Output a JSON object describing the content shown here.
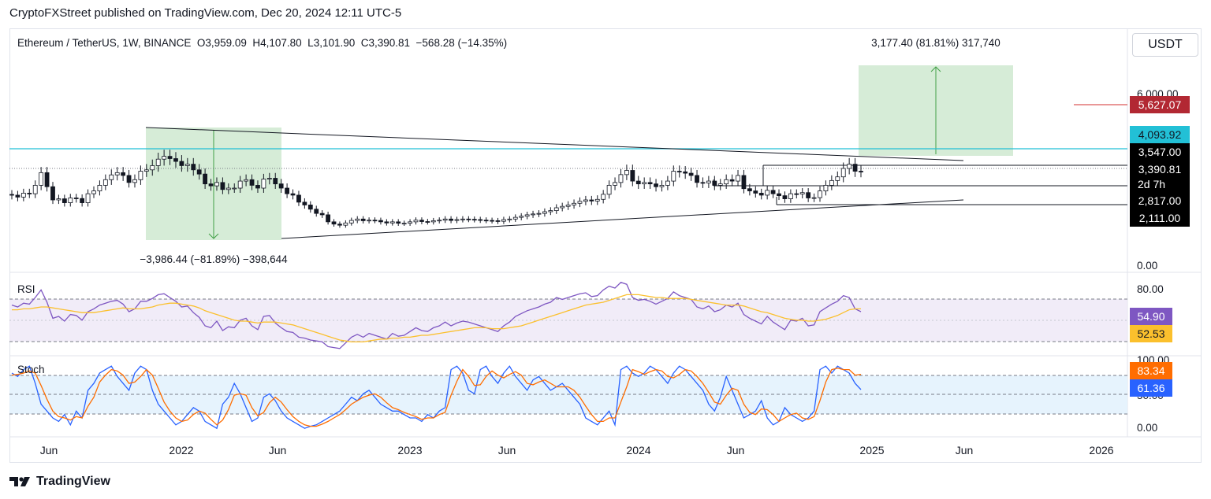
{
  "header": {
    "publisher": "CryptoFXStreet published on TradingView.com, Dec 20, 2024 12:11 UTC-5"
  },
  "footer": {
    "brand": "TradingView"
  },
  "symbol_line": "Ethereum / TetherUS, 1W, BINANCE  O3,959.09  H4,107.80  L3,101.90  C3,390.81  −568.28 (−14.35%)",
  "currency_button": "USDT",
  "chart_data": [
    {
      "type": "candlestick",
      "title": "Ethereum / TetherUS, 1W, BINANCE",
      "ohlc": {
        "open": 3959.09,
        "high": 4107.8,
        "low": 3101.9,
        "close": 3390.81,
        "change": -568.28,
        "change_pct": -14.35
      },
      "x_tick_labels": [
        "Jun",
        "2022",
        "Jun",
        "2023",
        "Jun",
        "2024",
        "Jun",
        "2025",
        "Jun",
        "2026"
      ],
      "y_tick_labels": [
        "6,000.00",
        "0.00"
      ],
      "price_labels": [
        {
          "text": "5,627.07",
          "color": "#b22833"
        },
        {
          "text": "4,093.92",
          "color": "#22c0d6"
        },
        {
          "text": "3,547.00",
          "color": "#000000"
        },
        {
          "text": "3,390.81",
          "color": "#000000"
        },
        {
          "text": "2d 7h",
          "color": "#000000"
        },
        {
          "text": "2,817.00",
          "color": "#000000"
        },
        {
          "text": "2,111.00",
          "color": "#000000"
        }
      ],
      "annotations": [
        "3,177.40 (81.81%) 317,740",
        "−3,986.44 (−81.89%) −398,644"
      ],
      "closes": [
        2550,
        2480,
        2620,
        2600,
        2900,
        3350,
        2850,
        2380,
        2420,
        2280,
        2450,
        2430,
        2280,
        2600,
        2700,
        2900,
        3100,
        3270,
        3350,
        3250,
        3000,
        3100,
        3400,
        3450,
        3600,
        3830,
        3930,
        3850,
        3750,
        3600,
        3650,
        3450,
        3300,
        2950,
        2880,
        3000,
        2750,
        2800,
        2800,
        3050,
        3100,
        2900,
        2800,
        3120,
        3150,
        2950,
        2800,
        2600,
        2550,
        2300,
        2200,
        2050,
        1900,
        1850,
        1600,
        1520,
        1480,
        1560,
        1650,
        1700,
        1640,
        1660,
        1650,
        1600,
        1560,
        1600,
        1550,
        1550,
        1600,
        1660,
        1610,
        1600,
        1640,
        1660,
        1700,
        1650,
        1680,
        1700,
        1690,
        1680,
        1660,
        1650,
        1640,
        1620,
        1680,
        1700,
        1760,
        1800,
        1850,
        1880,
        1900,
        1960,
        2000,
        2100,
        2150,
        2200,
        2260,
        2330,
        2380,
        2340,
        2400,
        2580,
        2900,
        3000,
        3280,
        3430,
        3050,
        2950,
        3000,
        2950,
        2850,
        2900,
        3050,
        3400,
        3380,
        3330,
        3250,
        3000,
        2980,
        3050,
        2900,
        2950,
        3100,
        3050,
        3250,
        2780,
        2700,
        2620,
        2550,
        2720,
        2600,
        2530,
        2420,
        2600,
        2590,
        2640,
        2450,
        2460,
        2700,
        2900,
        3070,
        3200,
        3500,
        3650,
        3400,
        3390
      ],
      "ylim": [
        0,
        7000
      ]
    },
    {
      "type": "line",
      "title": "RSI",
      "y_tick_labels": [
        "80.00"
      ],
      "series": [
        {
          "label": "54.90",
          "color": "#7e57c2",
          "values": [
            62,
            60,
            64,
            63,
            70,
            78,
            65,
            48,
            50,
            45,
            52,
            51,
            46,
            55,
            58,
            62,
            64,
            66,
            67,
            63,
            55,
            58,
            66,
            66,
            69,
            73,
            74,
            70,
            66,
            60,
            61,
            54,
            49,
            40,
            38,
            45,
            35,
            39,
            38,
            46,
            48,
            40,
            36,
            50,
            51,
            43,
            38,
            34,
            33,
            28,
            27,
            25,
            24,
            23,
            18,
            17,
            16,
            22,
            28,
            31,
            28,
            32,
            30,
            28,
            26,
            32,
            29,
            30,
            34,
            38,
            35,
            34,
            38,
            40,
            44,
            40,
            43,
            45,
            44,
            42,
            40,
            38,
            36,
            34,
            40,
            44,
            50,
            53,
            56,
            58,
            60,
            63,
            65,
            70,
            68,
            70,
            72,
            74,
            75,
            71,
            72,
            78,
            82,
            80,
            86,
            84,
            70,
            67,
            68,
            66,
            63,
            66,
            69,
            76,
            72,
            70,
            68,
            60,
            58,
            61,
            55,
            57,
            62,
            60,
            64,
            52,
            48,
            45,
            42,
            50,
            44,
            40,
            36,
            46,
            45,
            48,
            40,
            41,
            55,
            59,
            63,
            66,
            72,
            70,
            58,
            55
          ]
        },
        {
          "label": "52.53",
          "color": "#fbc02d",
          "values": [
            57,
            57,
            58,
            58,
            59,
            60,
            60,
            59,
            58,
            57,
            56,
            55,
            54,
            54,
            54,
            55,
            56,
            57,
            58,
            59,
            58,
            58,
            58,
            59,
            60,
            62,
            63,
            64,
            64,
            63,
            62,
            61,
            59,
            56,
            54,
            52,
            50,
            48,
            46,
            45,
            45,
            44,
            43,
            44,
            44,
            44,
            43,
            42,
            41,
            39,
            37,
            35,
            33,
            31,
            29,
            27,
            25,
            24,
            23,
            23,
            23,
            24,
            25,
            26,
            26,
            27,
            27,
            28,
            28,
            29,
            30,
            30,
            31,
            32,
            33,
            34,
            35,
            36,
            37,
            38,
            38,
            38,
            37,
            37,
            37,
            38,
            39,
            40,
            42,
            44,
            46,
            48,
            50,
            52,
            54,
            56,
            58,
            60,
            62,
            63,
            64,
            65,
            67,
            69,
            71,
            73,
            73,
            73,
            72,
            71,
            70,
            70,
            69,
            69,
            69,
            69,
            68,
            67,
            66,
            65,
            64,
            63,
            62,
            62,
            62,
            61,
            59,
            57,
            55,
            54,
            52,
            50,
            48,
            47,
            46,
            46,
            45,
            45,
            46,
            47,
            49,
            51,
            54,
            57,
            58,
            58
          ]
        }
      ],
      "ylim": [
        10,
        95
      ]
    },
    {
      "type": "line",
      "title": "Stoch",
      "y_tick_labels": [
        "100.00",
        "50.00",
        "0.00"
      ],
      "series": [
        {
          "label": "61.36",
          "color": "#2962ff",
          "values": [
            85,
            80,
            90,
            95,
            70,
            40,
            30,
            20,
            15,
            25,
            10,
            30,
            20,
            60,
            70,
            85,
            90,
            95,
            80,
            70,
            60,
            85,
            95,
            90,
            60,
            40,
            30,
            20,
            10,
            15,
            25,
            35,
            30,
            15,
            10,
            5,
            40,
            50,
            70,
            55,
            35,
            15,
            20,
            50,
            55,
            45,
            30,
            20,
            15,
            10,
            5,
            8,
            10,
            15,
            20,
            25,
            30,
            40,
            50,
            45,
            55,
            60,
            50,
            40,
            35,
            30,
            30,
            25,
            20,
            20,
            15,
            25,
            20,
            30,
            35,
            90,
            95,
            85,
            60,
            55,
            90,
            95,
            80,
            70,
            85,
            95,
            80,
            70,
            60,
            75,
            80,
            70,
            60,
            65,
            70,
            60,
            50,
            40,
            20,
            15,
            10,
            20,
            30,
            10,
            90,
            95,
            85,
            80,
            85,
            95,
            90,
            80,
            70,
            85,
            95,
            90,
            80,
            70,
            60,
            40,
            30,
            50,
            80,
            60,
            40,
            20,
            25,
            30,
            45,
            20,
            10,
            15,
            35,
            25,
            20,
            15,
            20,
            30,
            90,
            95,
            85,
            95,
            90,
            85,
            70,
            61
          ]
        },
        {
          "label": "83.34",
          "color": "#ff6d00",
          "values": [
            82,
            83,
            85,
            88,
            85,
            67,
            47,
            30,
            22,
            20,
            17,
            22,
            20,
            37,
            50,
            72,
            82,
            90,
            88,
            82,
            70,
            72,
            80,
            90,
            82,
            63,
            43,
            30,
            20,
            15,
            17,
            25,
            30,
            27,
            18,
            10,
            17,
            32,
            53,
            55,
            53,
            35,
            23,
            28,
            42,
            50,
            43,
            32,
            22,
            15,
            10,
            8,
            8,
            11,
            15,
            20,
            25,
            32,
            40,
            45,
            50,
            53,
            55,
            50,
            42,
            35,
            32,
            28,
            25,
            22,
            18,
            20,
            20,
            25,
            28,
            53,
            73,
            90,
            80,
            67,
            68,
            80,
            88,
            82,
            78,
            83,
            87,
            82,
            70,
            68,
            72,
            75,
            70,
            65,
            65,
            65,
            60,
            50,
            37,
            25,
            15,
            15,
            20,
            20,
            43,
            65,
            90,
            87,
            83,
            87,
            90,
            88,
            80,
            78,
            83,
            90,
            88,
            80,
            70,
            57,
            43,
            40,
            53,
            63,
            60,
            40,
            28,
            25,
            33,
            32,
            25,
            15,
            20,
            25,
            27,
            20,
            18,
            22,
            45,
            72,
            90,
            92,
            90,
            90,
            82,
            83
          ]
        }
      ],
      "ylim": [
        -5,
        110
      ]
    }
  ]
}
